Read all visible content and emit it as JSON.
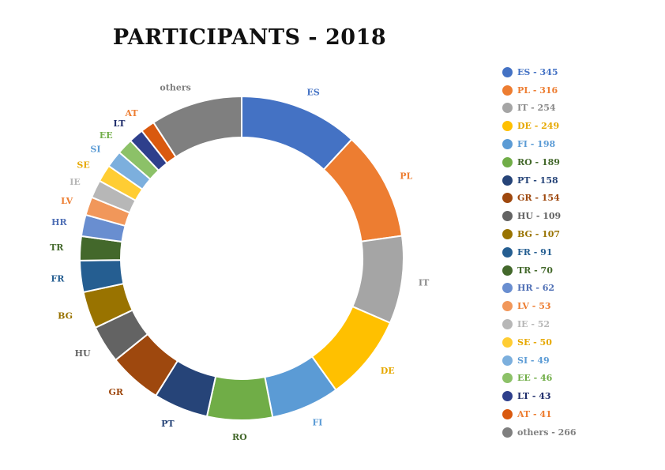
{
  "chart_data": {
    "type": "pie",
    "title": "PARTICIPANTS - 2018",
    "categories": [
      "ES",
      "PL",
      "IT",
      "DE",
      "FI",
      "RO",
      "PT",
      "GR",
      "HU",
      "BG",
      "FR",
      "TR",
      "HR",
      "LV",
      "IE",
      "SE",
      "SI",
      "EE",
      "LT",
      "AT",
      "others"
    ],
    "values": [
      345,
      316,
      254,
      249,
      198,
      189,
      158,
      154,
      109,
      107,
      91,
      70,
      62,
      53,
      52,
      50,
      49,
      46,
      43,
      41,
      266
    ],
    "colors": [
      "#4472C4",
      "#ED7D31",
      "#A5A5A5",
      "#FFC000",
      "#5B9BD5",
      "#70AD47",
      "#264478",
      "#9E480E",
      "#636363",
      "#997300",
      "#255E91",
      "#43682B",
      "#698ED0",
      "#F1975A",
      "#B7B7B7",
      "#FFCD33",
      "#7CAFDD",
      "#8CC168",
      "#2E3F8C",
      "#D9590F",
      "#7F7F7F"
    ],
    "label_colors": [
      "#4472C4",
      "#ED7D31",
      "#8A8A8A",
      "#E6A800",
      "#5B9BD5",
      "#43682B",
      "#264478",
      "#9E480E",
      "#636363",
      "#997300",
      "#255E91",
      "#43682B",
      "#4F6FB5",
      "#ED7D31",
      "#B7B7B7",
      "#E6A800",
      "#5B9BD5",
      "#70AD47",
      "#1F2D6B",
      "#ED7D31",
      "#7F7F7F"
    ],
    "legend": [
      "ES - 345",
      "PL - 316",
      "IT - 254",
      "DE - 249",
      "FI - 198",
      "RO - 189",
      "PT - 158",
      "GR - 154",
      "HU - 109",
      "BG - 107",
      "FR - 91",
      "TR - 70",
      "HR - 62",
      "LV - 53",
      "IE - 52",
      "SE - 50",
      "SI - 49",
      "EE - 46",
      "LT - 43",
      "AT - 41",
      "others - 266"
    ],
    "legend_placement": "right"
  }
}
